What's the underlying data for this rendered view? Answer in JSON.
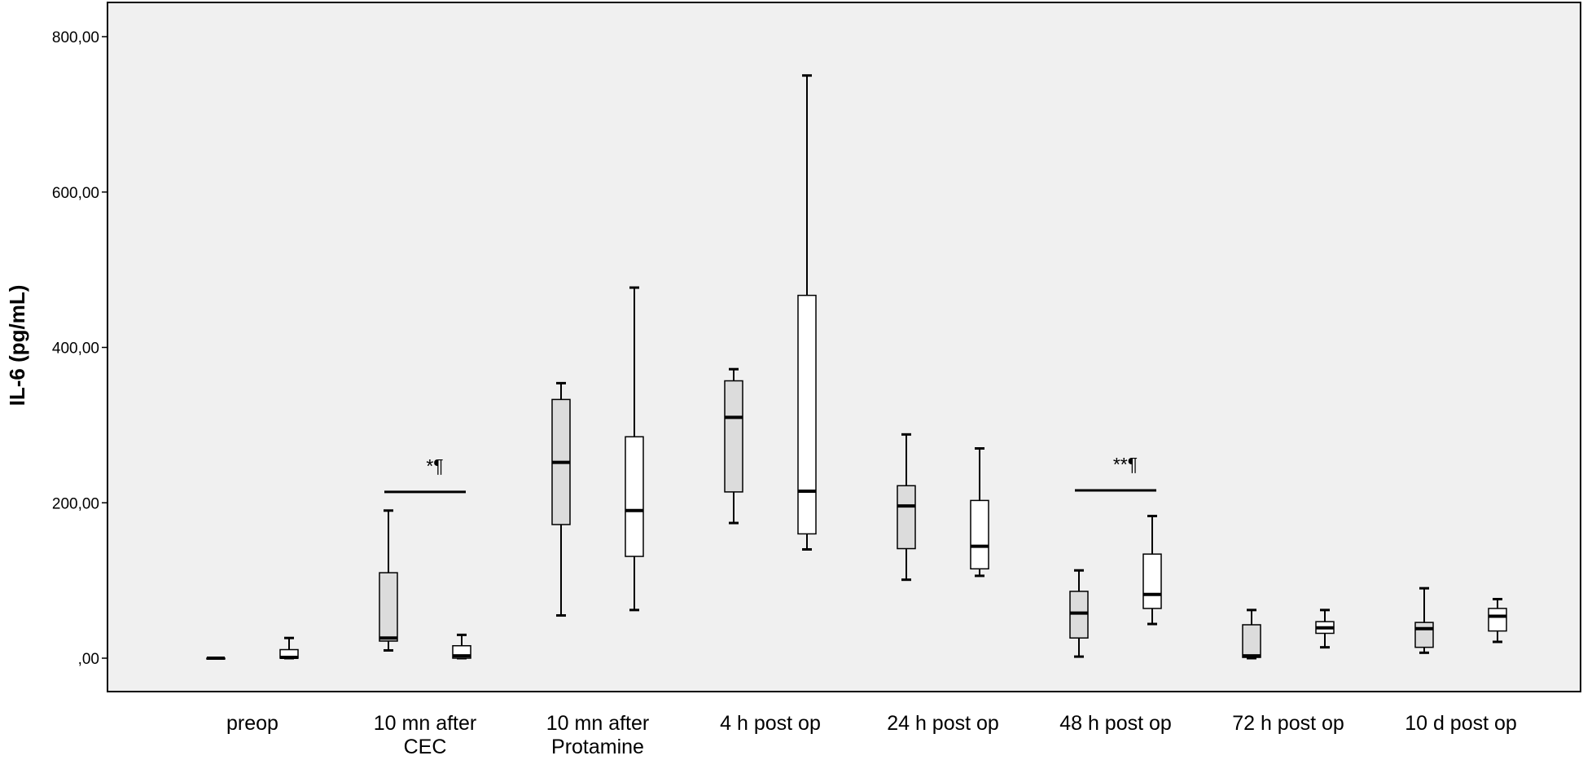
{
  "chart_data": {
    "type": "boxplot",
    "ylabel": "IL-6 (pg/mL)",
    "ylim": [
      -45,
      845
    ],
    "yticks": [
      {
        "value": 0,
        "label": ",00"
      },
      {
        "value": 200,
        "label": "200,00"
      },
      {
        "value": 400,
        "label": "400,00"
      },
      {
        "value": 600,
        "label": "600,00"
      },
      {
        "value": 800,
        "label": "800,00"
      }
    ],
    "categories": [
      [
        "preop"
      ],
      [
        "10 mn after",
        "CEC"
      ],
      [
        "10 mn after",
        "Protamine"
      ],
      [
        "4 h post op"
      ],
      [
        "24 h post op"
      ],
      [
        "48 h post op"
      ],
      [
        "72 h post op"
      ],
      [
        "10 d post op"
      ]
    ],
    "colors": {
      "group1": "#dcdcdc",
      "group2": "#ffffff",
      "background": "#f0f0f0"
    },
    "series": [
      {
        "boxes": [
          {
            "min": 0,
            "q1": 0,
            "median": 0,
            "q3": 0,
            "max": 0
          },
          {
            "min": 10,
            "q1": 22,
            "median": 26,
            "q3": 110,
            "max": 190
          },
          {
            "min": 55,
            "q1": 172,
            "median": 252,
            "q3": 333,
            "max": 354
          },
          {
            "min": 174,
            "q1": 214,
            "median": 310,
            "q3": 357,
            "max": 372
          },
          {
            "min": 101,
            "q1": 141,
            "median": 196,
            "q3": 222,
            "max": 288
          },
          {
            "min": 2,
            "q1": 26,
            "median": 58,
            "q3": 86,
            "max": 113
          },
          {
            "min": 0,
            "q1": 1,
            "median": 3,
            "q3": 43,
            "max": 62
          },
          {
            "min": 7,
            "q1": 14,
            "median": 38,
            "q3": 46,
            "max": 90
          }
        ]
      },
      {
        "boxes": [
          {
            "min": 0,
            "q1": 0,
            "median": 1,
            "q3": 11,
            "max": 26
          },
          {
            "min": 0,
            "q1": 0,
            "median": 3,
            "q3": 16,
            "max": 30
          },
          {
            "min": 62,
            "q1": 131,
            "median": 190,
            "q3": 285,
            "max": 477
          },
          {
            "min": 140,
            "q1": 160,
            "median": 215,
            "q3": 467,
            "max": 750
          },
          {
            "min": 106,
            "q1": 115,
            "median": 144,
            "q3": 203,
            "max": 270
          },
          {
            "min": 44,
            "q1": 64,
            "median": 82,
            "q3": 134,
            "max": 183
          },
          {
            "min": 14,
            "q1": 32,
            "median": 39,
            "q3": 47,
            "max": 62
          },
          {
            "min": 21,
            "q1": 35,
            "median": 54,
            "q3": 64,
            "max": 76
          }
        ]
      }
    ],
    "annotations": [
      {
        "category_index": 1,
        "y": 214,
        "label": "*¶"
      },
      {
        "category_index": 5,
        "y": 216,
        "label": "**¶"
      }
    ]
  }
}
